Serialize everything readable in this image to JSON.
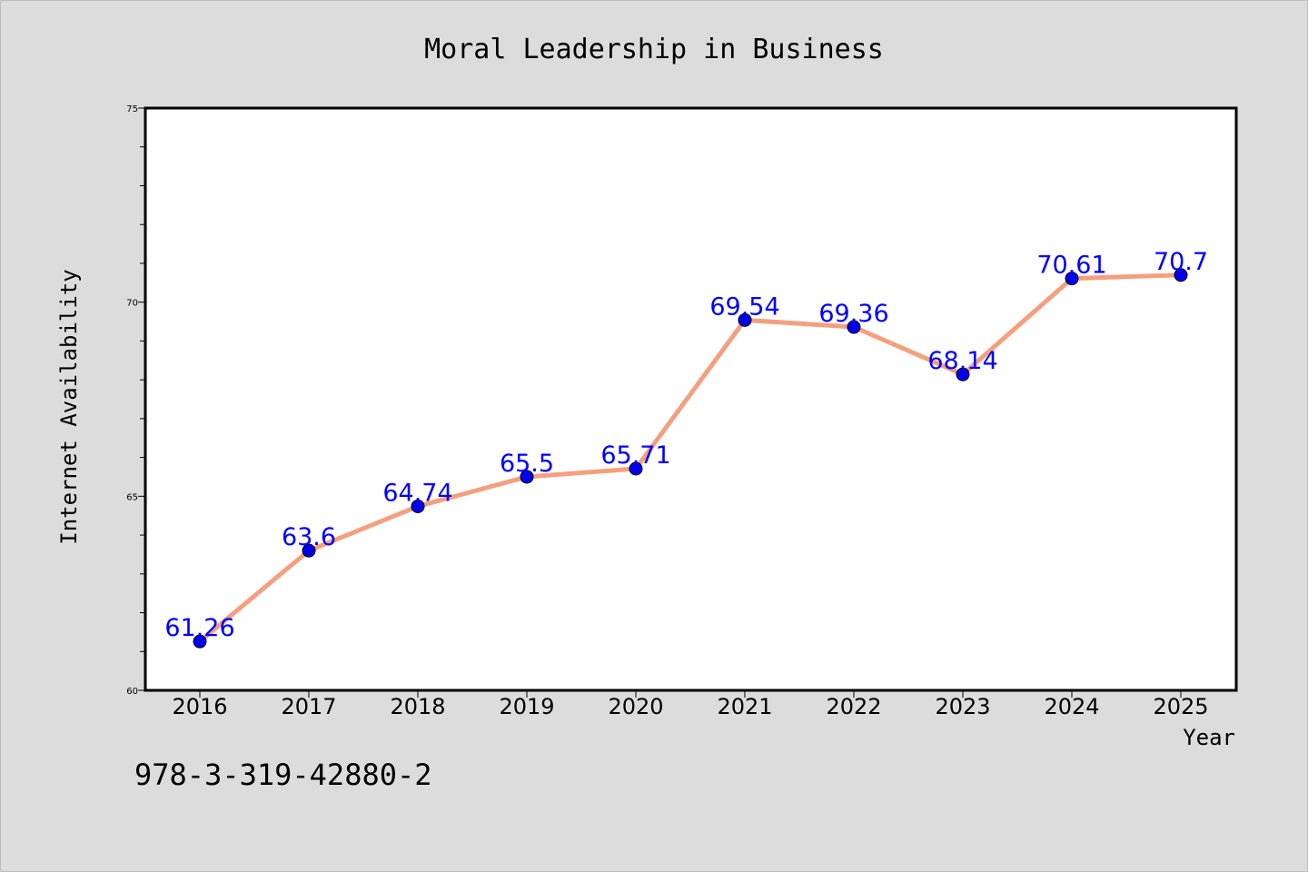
{
  "chart_data": {
    "type": "line",
    "title": "Moral Leadership in Business",
    "xlabel": "Year",
    "ylabel": "Internet Availability",
    "categories": [
      "2016",
      "2017",
      "2018",
      "2019",
      "2020",
      "2021",
      "2022",
      "2023",
      "2024",
      "2025"
    ],
    "values": [
      61.26,
      63.6,
      64.74,
      65.5,
      65.71,
      69.54,
      69.36,
      68.14,
      70.61,
      70.7
    ],
    "data_labels": [
      "61.26",
      "63.6",
      "64.74",
      "65.5",
      "65.71",
      "69.54",
      "69.36",
      "68.14",
      "70.61",
      "70.7"
    ],
    "ylim": [
      60,
      75
    ],
    "yticks": [
      "60",
      "65",
      "70",
      "75"
    ],
    "grid": false,
    "line_color": "#f4a07f",
    "marker_color": "#0000ee",
    "label_color": "#0000ff"
  },
  "footnote": "978-3-319-42880-2"
}
